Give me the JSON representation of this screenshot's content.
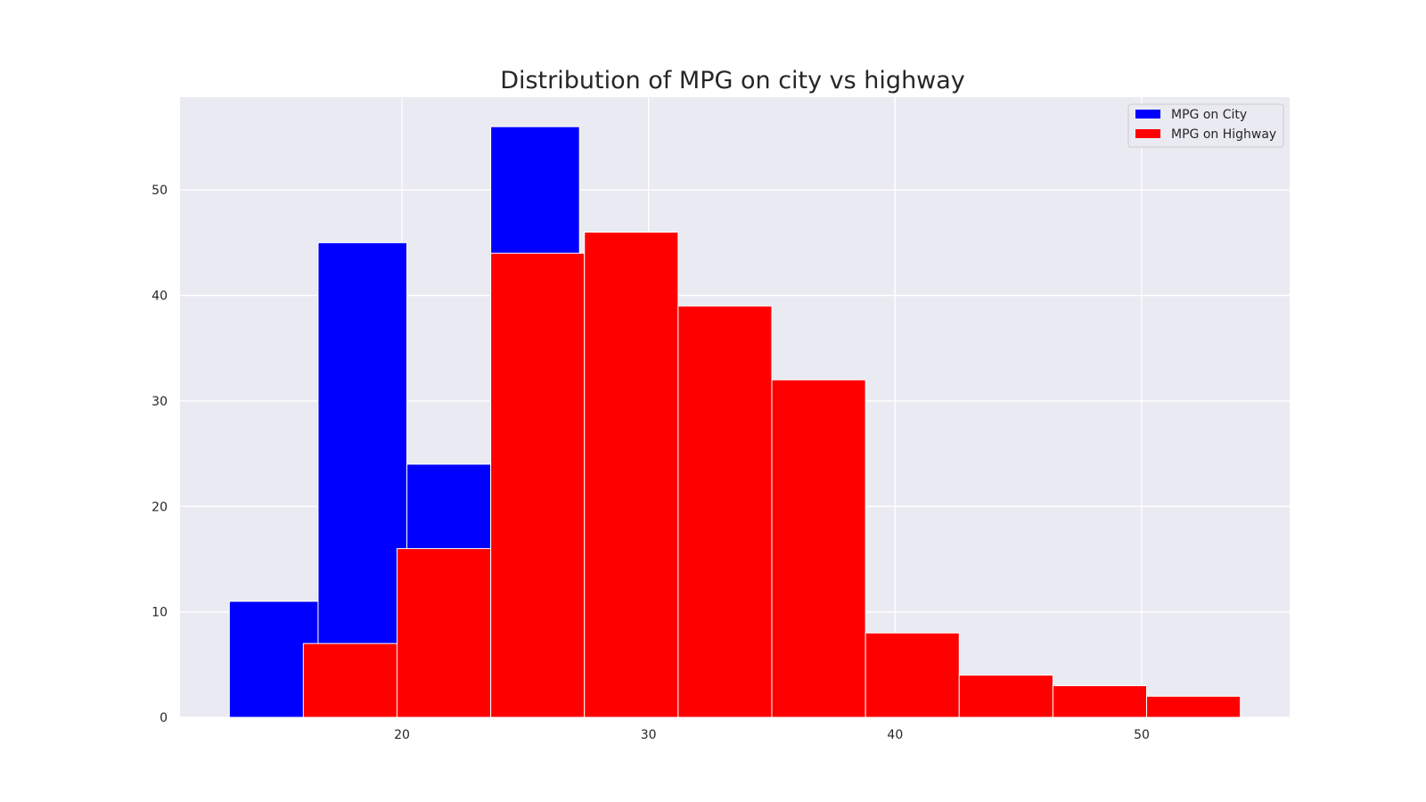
{
  "chart_data": {
    "type": "bar",
    "chart_kind": "histogram",
    "title": "Distribution of MPG on city vs highway",
    "xlabel": "",
    "ylabel": "",
    "xlim": [
      11,
      56
    ],
    "ylim": [
      0,
      58.8
    ],
    "x_ticks": [
      20,
      30,
      40,
      50
    ],
    "y_ticks": [
      0,
      10,
      20,
      30,
      40,
      50
    ],
    "grid": true,
    "legend_position": "top-right",
    "colors": {
      "plot_background": "#eaeaf2",
      "grid": "#ffffff",
      "bar_edge": "#ffffff"
    },
    "series": [
      {
        "name": "MPG on City",
        "color": "#0000ff",
        "bin_edges": [
          13.0,
          16.6,
          20.2,
          23.6,
          27.2
        ],
        "values": [
          11,
          45,
          24,
          56
        ]
      },
      {
        "name": "MPG on Highway",
        "color": "#ff0000",
        "bin_edges": [
          16.0,
          19.8,
          23.6,
          27.4,
          31.2,
          35.0,
          38.8,
          42.6,
          46.4,
          50.2,
          54.0
        ],
        "values": [
          7,
          16,
          44,
          46,
          39,
          32,
          8,
          4,
          3,
          2
        ]
      }
    ]
  }
}
